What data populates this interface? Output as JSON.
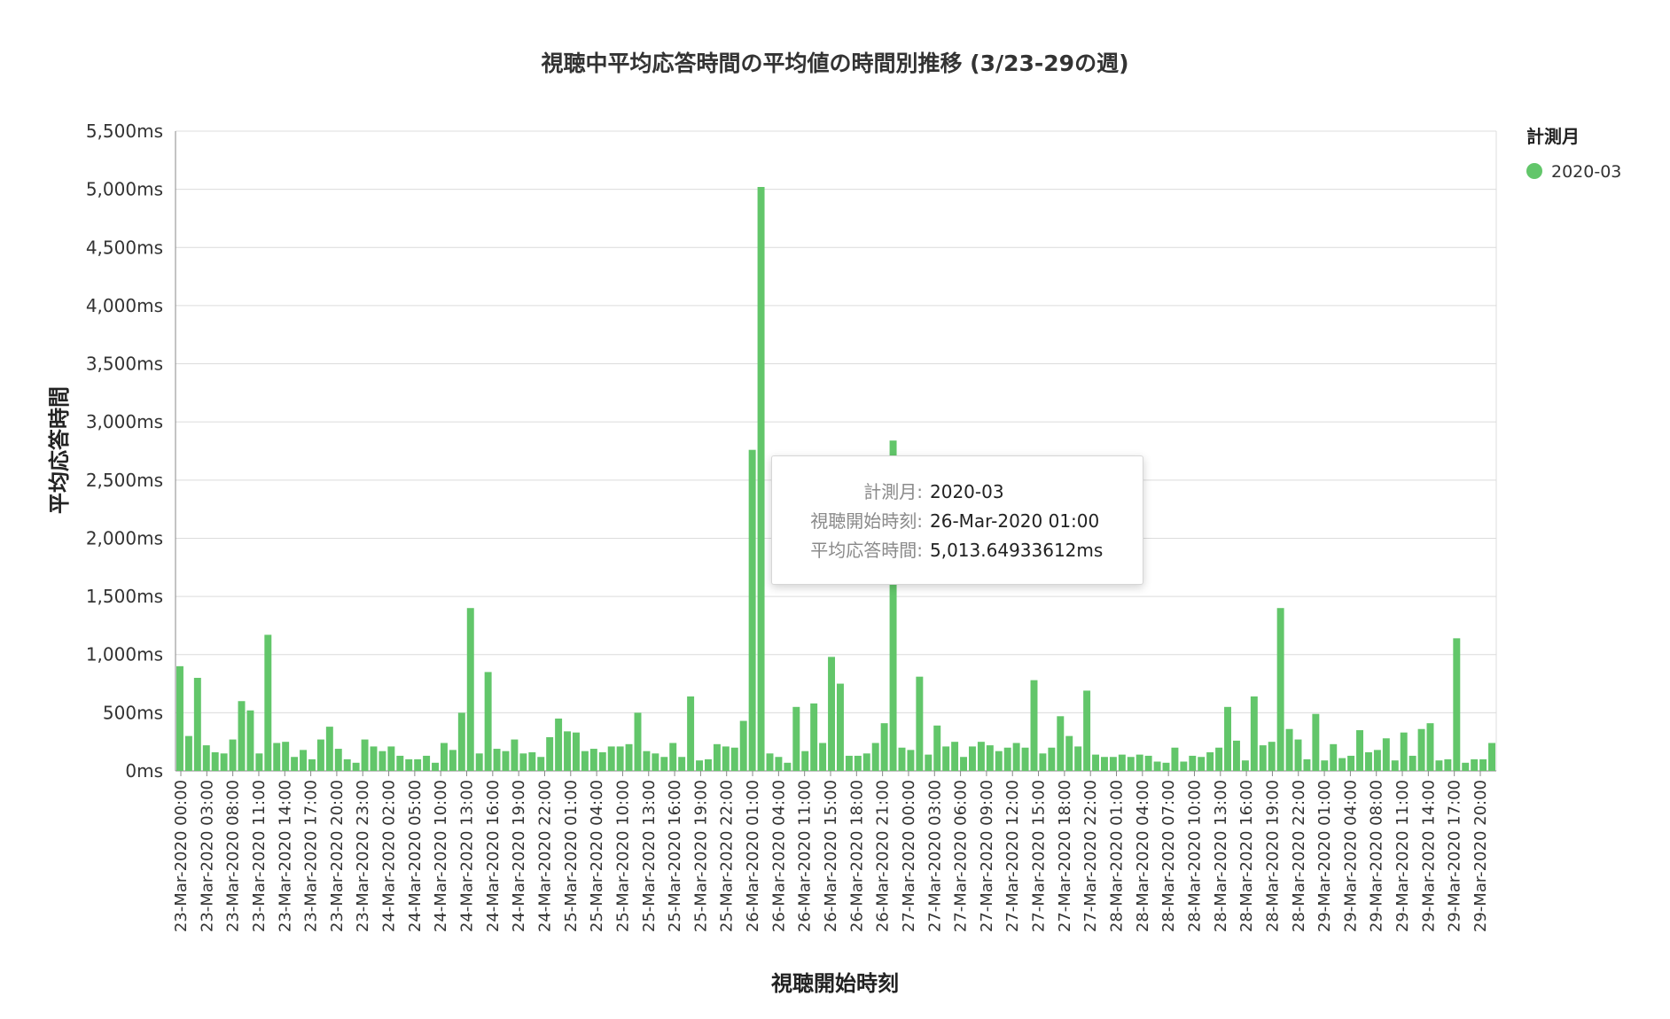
{
  "chart_data": {
    "type": "bar",
    "title": "視聴中平均応答時間の平均値の時間別推移 (3/23-29の週)",
    "xlabel": "視聴開始時刻",
    "ylabel": "平均応答時間",
    "ylim": [
      0,
      5500
    ],
    "yticks": [
      "0ms",
      "500ms",
      "1,000ms",
      "1,500ms",
      "2,000ms",
      "2,500ms",
      "3,000ms",
      "3,500ms",
      "4,000ms",
      "4,500ms",
      "5,000ms",
      "5,500ms"
    ],
    "grid": true,
    "legend_position": "right",
    "legend": {
      "title": "計測月",
      "items": [
        {
          "label": "2020-03",
          "color": "#62c66a"
        }
      ]
    },
    "x_tick_labels": [
      "23-Mar-2020 00:00",
      "23-Mar-2020 03:00",
      "23-Mar-2020 08:00",
      "23-Mar-2020 11:00",
      "23-Mar-2020 14:00",
      "23-Mar-2020 17:00",
      "23-Mar-2020 20:00",
      "23-Mar-2020 23:00",
      "24-Mar-2020 02:00",
      "24-Mar-2020 05:00",
      "24-Mar-2020 10:00",
      "24-Mar-2020 13:00",
      "24-Mar-2020 16:00",
      "24-Mar-2020 19:00",
      "24-Mar-2020 22:00",
      "25-Mar-2020 01:00",
      "25-Mar-2020 04:00",
      "25-Mar-2020 10:00",
      "25-Mar-2020 13:00",
      "25-Mar-2020 16:00",
      "25-Mar-2020 19:00",
      "25-Mar-2020 22:00",
      "26-Mar-2020 01:00",
      "26-Mar-2020 04:00",
      "26-Mar-2020 11:00",
      "26-Mar-2020 15:00",
      "26-Mar-2020 18:00",
      "26-Mar-2020 21:00",
      "27-Mar-2020 00:00",
      "27-Mar-2020 03:00",
      "27-Mar-2020 06:00",
      "27-Mar-2020 09:00",
      "27-Mar-2020 12:00",
      "27-Mar-2020 15:00",
      "27-Mar-2020 18:00",
      "27-Mar-2020 22:00",
      "28-Mar-2020 01:00",
      "28-Mar-2020 04:00",
      "28-Mar-2020 07:00",
      "28-Mar-2020 10:00",
      "28-Mar-2020 13:00",
      "28-Mar-2020 16:00",
      "28-Mar-2020 19:00",
      "28-Mar-2020 22:00",
      "29-Mar-2020 01:00",
      "29-Mar-2020 04:00",
      "29-Mar-2020 08:00",
      "29-Mar-2020 11:00",
      "29-Mar-2020 14:00",
      "29-Mar-2020 17:00",
      "29-Mar-2020 20:00"
    ],
    "series": [
      {
        "name": "2020-03",
        "color": "#62c66a",
        "values": [
          900,
          300,
          800,
          220,
          160,
          150,
          270,
          600,
          520,
          150,
          1170,
          240,
          250,
          120,
          180,
          100,
          270,
          380,
          190,
          100,
          70,
          270,
          210,
          170,
          210,
          130,
          100,
          100,
          130,
          70,
          240,
          180,
          500,
          1400,
          150,
          850,
          190,
          170,
          270,
          150,
          160,
          120,
          290,
          450,
          340,
          330,
          170,
          190,
          160,
          210,
          210,
          230,
          500,
          170,
          150,
          120,
          240,
          120,
          640,
          90,
          100,
          230,
          210,
          200,
          430,
          2760,
          5020,
          150,
          120,
          70,
          550,
          170,
          580,
          240,
          980,
          750,
          130,
          130,
          150,
          240,
          410,
          2840,
          200,
          180,
          810,
          140,
          390,
          210,
          250,
          120,
          210,
          250,
          220,
          170,
          200,
          240,
          200,
          780,
          150,
          200,
          470,
          300,
          210,
          690,
          140,
          120,
          120,
          140,
          120,
          140,
          130,
          80,
          70,
          200,
          80,
          130,
          120,
          160,
          200,
          550,
          260,
          90,
          640,
          220,
          250,
          1400,
          360,
          270,
          100,
          490,
          90,
          230,
          110,
          130,
          350,
          160,
          180,
          280,
          90,
          330,
          130,
          360,
          410,
          90,
          100,
          1140,
          70,
          100,
          100,
          240
        ]
      }
    ],
    "tooltip": {
      "rows": [
        {
          "key": "計測月:",
          "value": "2020-03"
        },
        {
          "key": "視聴開始時刻:",
          "value": "26-Mar-2020 01:00"
        },
        {
          "key": "平均応答時間:",
          "value": "5,013.64933612ms"
        }
      ]
    }
  }
}
